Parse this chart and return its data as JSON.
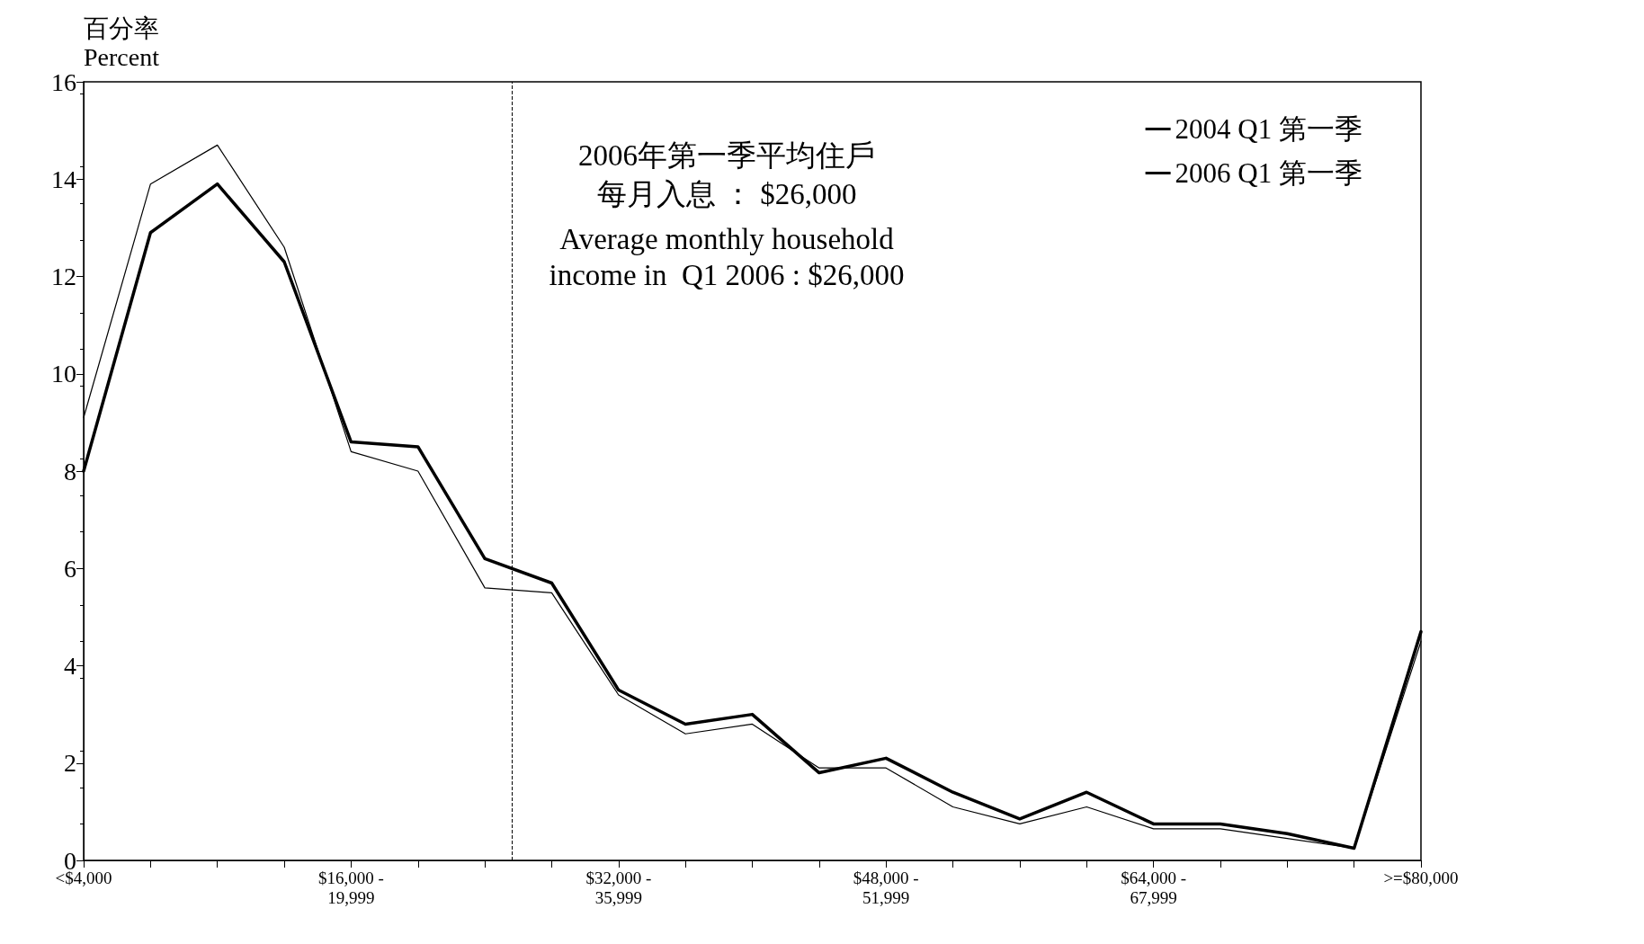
{
  "chart_data": {
    "type": "line",
    "ylabel": "百分率\nPercent",
    "categories": [
      "<$4,000",
      null,
      null,
      null,
      "$16,000 -\n19,999",
      null,
      null,
      null,
      "$32,000 -\n35,999",
      null,
      null,
      null,
      "$48,000 -\n51,999",
      null,
      null,
      null,
      "$64,000 -\n67,999",
      null,
      null,
      null,
      ">=$80,000"
    ],
    "series": [
      {
        "name": "2004 Q1 第一季",
        "color": "#000000",
        "values": [
          9.1,
          13.9,
          14.7,
          12.6,
          8.4,
          8.0,
          5.6,
          5.5,
          3.4,
          2.6,
          2.8,
          1.9,
          1.9,
          1.1,
          0.75,
          1.1,
          0.65,
          0.65,
          0.45,
          0.25,
          4.5
        ]
      },
      {
        "name": "2006 Q1 第一季",
        "color": "#000000",
        "values": [
          8.0,
          12.9,
          13.9,
          12.3,
          8.6,
          8.5,
          6.2,
          5.7,
          3.5,
          2.8,
          3.0,
          1.8,
          2.1,
          1.4,
          0.85,
          1.4,
          0.75,
          0.75,
          0.55,
          0.25,
          4.7
        ]
      }
    ],
    "ylim": [
      0,
      16
    ],
    "yticks": [
      0,
      2,
      4,
      6,
      8,
      10,
      12,
      14,
      16
    ],
    "annotations": [
      "2006年第一季平均住戶",
      "每月入息 ： $26,000",
      "Average monthly household\nincome in  Q1 2006 : $26,000"
    ],
    "legend": "top right",
    "grid": false,
    "marker": "none",
    "line_style": "solid"
  }
}
